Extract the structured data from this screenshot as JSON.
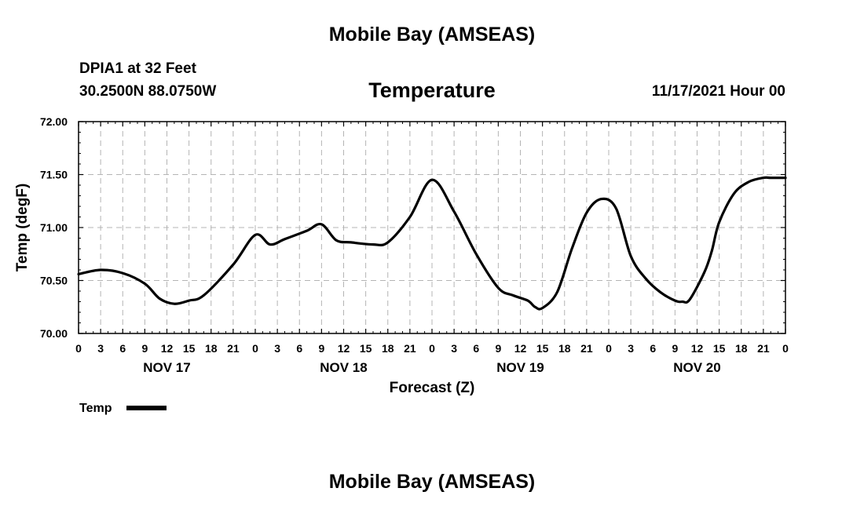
{
  "header": {
    "title": "Mobile Bay (AMSEAS)",
    "station": "DPIA1 at 32 Feet",
    "coords": "30.2500N  88.0750W",
    "datetime": "11/17/2021 Hour 00"
  },
  "footer": {
    "title": "Mobile Bay (AMSEAS)"
  },
  "colors": {
    "line": "#000000",
    "grid": "#b4b4b4",
    "background": "#ffffff"
  },
  "chart_data": {
    "type": "line",
    "title": "Temperature",
    "xlabel": "Forecast (Z)",
    "ylabel": "Temp (degF)",
    "ylim": [
      70.0,
      72.0
    ],
    "xlim": [
      0,
      96
    ],
    "grid": true,
    "legend_position": "bottom-left",
    "y_ticks": [
      "70.00",
      "70.50",
      "71.00",
      "71.50",
      "72.00"
    ],
    "x_tick_labels": [
      "0",
      "3",
      "6",
      "9",
      "12",
      "15",
      "18",
      "21",
      "0",
      "3",
      "6",
      "9",
      "12",
      "15",
      "18",
      "21",
      "0",
      "3",
      "6",
      "9",
      "12",
      "15",
      "18",
      "21",
      "0",
      "3",
      "6",
      "9",
      "12",
      "15",
      "18",
      "21",
      "0"
    ],
    "day_labels": [
      "NOV 17",
      "NOV 18",
      "NOV 19",
      "NOV 20"
    ],
    "series": [
      {
        "name": "Temp",
        "x": [
          0,
          3,
          6,
          9,
          11,
          13,
          15,
          17,
          21,
          24,
          26,
          28,
          31,
          33,
          35,
          37,
          40,
          42,
          45,
          48,
          51,
          54,
          57,
          59,
          61,
          62,
          63,
          65,
          67,
          69,
          71,
          73,
          75,
          77,
          79,
          81,
          82,
          83,
          85,
          86,
          87,
          89,
          91,
          93,
          94,
          96
        ],
        "values": [
          70.56,
          70.6,
          70.57,
          70.47,
          70.33,
          70.28,
          70.31,
          70.36,
          70.65,
          70.93,
          70.84,
          70.89,
          70.97,
          71.03,
          70.88,
          70.86,
          70.84,
          70.86,
          71.1,
          71.45,
          71.15,
          70.75,
          70.43,
          70.36,
          70.31,
          70.25,
          70.24,
          70.39,
          70.8,
          71.14,
          71.27,
          71.18,
          70.73,
          70.52,
          70.39,
          70.31,
          70.3,
          70.32,
          70.58,
          70.78,
          71.05,
          71.32,
          71.43,
          71.47,
          71.47,
          71.47
        ]
      }
    ]
  }
}
